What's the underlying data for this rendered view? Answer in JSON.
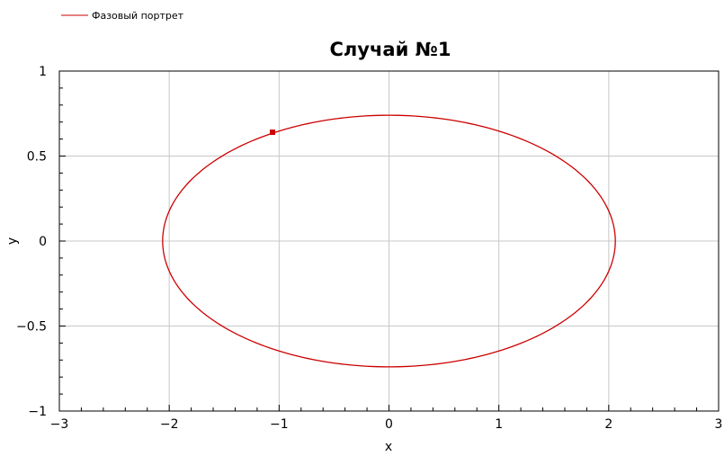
{
  "chart_data": {
    "type": "line",
    "title": "Случай №1",
    "xlabel": "x",
    "ylabel": "y",
    "xlim": [
      -3,
      3
    ],
    "ylim": [
      -1,
      1
    ],
    "xticks": [
      -3,
      -2,
      -1,
      0,
      1,
      2,
      3
    ],
    "yticks": [
      -1,
      -0.5,
      0,
      0.5,
      1
    ],
    "grid": true,
    "legend_position": "top-left",
    "series": [
      {
        "name": "Фазовый портрет",
        "color": "#cc0000",
        "curve": "ellipse",
        "x_semi_axis": 2.06,
        "y_semi_axis": 0.74,
        "marker": {
          "x": -1.06,
          "y": 0.64
        }
      }
    ]
  }
}
